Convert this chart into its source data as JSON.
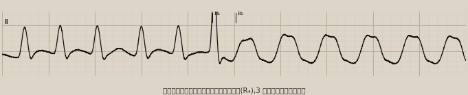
{
  "title": "窦性心律不齐、高位室性早搏伴逆传心房(R₄),3 相性完全性左束支阻滞",
  "lead_label": "II",
  "R4_label": "R₄",
  "R5_label": "R₅",
  "bg_color": "#ddd5c8",
  "grid_major_color": "#b8a898",
  "grid_minor_color": "#ccc4b8",
  "ecg_color": "#111111",
  "line_width": 0.9,
  "figsize": [
    6.81,
    1.39
  ],
  "dpi": 100,
  "caption_color": "#333333",
  "caption_fontsize": 7.5
}
